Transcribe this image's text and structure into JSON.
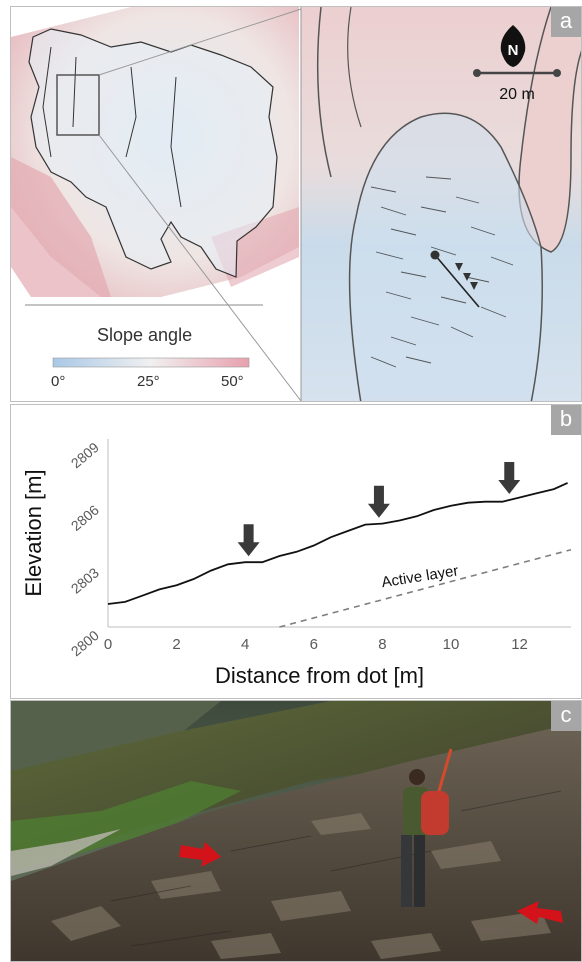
{
  "panel_a": {
    "tag": "a",
    "north_label": "N",
    "scale_label": "20 m",
    "legend_title": "Slope angle",
    "legend_ticks": [
      "0°",
      "25°",
      "50°"
    ],
    "colors": {
      "low": "#a9c8e6",
      "mid": "#eeeeee",
      "high": "#e8a0ad"
    }
  },
  "panel_b": {
    "tag": "b",
    "chart_data": {
      "type": "line",
      "xlabel": "Distance from dot [m]",
      "ylabel": "Elevation [m]",
      "xlim": [
        0,
        13.5
      ],
      "ylim": [
        2800,
        2809
      ],
      "xticks": [
        "0",
        "2",
        "4",
        "6",
        "8",
        "10",
        "12"
      ],
      "yticks": [
        "2800",
        "2803",
        "2806",
        "2809"
      ],
      "series": [
        {
          "x": [
            0,
            0.5,
            1,
            1.5,
            2,
            2.5,
            3,
            3.5,
            4,
            4.5,
            5,
            5.5,
            6,
            6.5,
            7,
            7.5,
            8,
            8.5,
            9,
            9.5,
            10,
            10.5,
            11,
            11.5,
            12,
            12.5,
            13,
            13.4
          ],
          "y": [
            2801.1,
            2801.2,
            2801.5,
            2801.8,
            2802.0,
            2802.3,
            2802.7,
            2803.0,
            2803.1,
            2803.1,
            2803.4,
            2803.6,
            2803.9,
            2804.3,
            2804.6,
            2804.9,
            2804.95,
            2805.1,
            2805.3,
            2805.6,
            2805.8,
            2805.95,
            2806.0,
            2806.0,
            2806.2,
            2806.4,
            2806.6,
            2806.9
          ]
        },
        {
          "x": [
            5,
            13.5
          ],
          "y": [
            2800.0,
            2803.7
          ],
          "style": "dashed"
        }
      ],
      "annotations": [
        {
          "text": "Active layer"
        }
      ],
      "arrows_at_x": [
        4.1,
        7.9,
        11.7
      ]
    }
  },
  "panel_c": {
    "tag": "c"
  }
}
